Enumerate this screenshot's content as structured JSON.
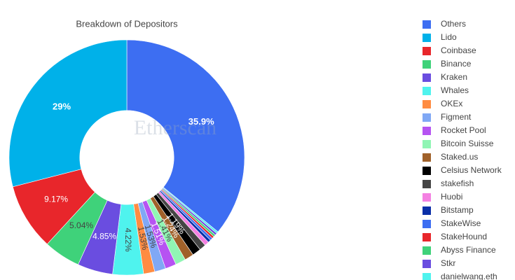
{
  "chart_data": {
    "type": "pie",
    "title": "Breakdown of Depositors",
    "watermark": "Etherscan",
    "categories": [
      "Others",
      "Lido",
      "Coinbase",
      "Binance",
      "Kraken",
      "Whales",
      "OKEx",
      "Figment",
      "Rocket Pool",
      "Bitcoin Suisse",
      "Staked.us",
      "Celsius Network",
      "stakefish",
      "Huobi",
      "Bitstamp",
      "StakeWise",
      "StakeHound",
      "Abyss Finance",
      "Stkr",
      "danielwang.eth"
    ],
    "values": [
      35.9,
      29,
      9.17,
      5.04,
      4.85,
      4.22,
      1.53,
      1.53,
      1.51,
      1.41,
      1.24,
      1.19,
      0.9,
      0.6,
      0.4,
      0.35,
      0.3,
      0.3,
      0.3,
      0.26
    ],
    "value_labels": [
      "35.9%",
      "29%",
      "9.17%",
      "5.04%",
      "4.85%",
      "4.22%",
      "1.53%",
      "1.53%",
      "1.51%",
      "1.41%",
      "1.24%",
      "1.19%",
      null,
      null,
      null,
      null,
      null,
      null,
      null,
      null
    ],
    "colors": [
      "#3d6ef2",
      "#00b1e9",
      "#e8262b",
      "#3fd27a",
      "#6a4de0",
      "#4ff3ee",
      "#ff8c42",
      "#80a8f5",
      "#b653f2",
      "#90f5b4",
      "#a0612a",
      "#000000",
      "#454545",
      "#f481e2",
      "#0a2fa8",
      "#3d6ef2",
      "#e8262b",
      "#3fd27a",
      "#6a4de0",
      "#4ff3ee"
    ],
    "hole": 0.4,
    "legend": "right"
  }
}
